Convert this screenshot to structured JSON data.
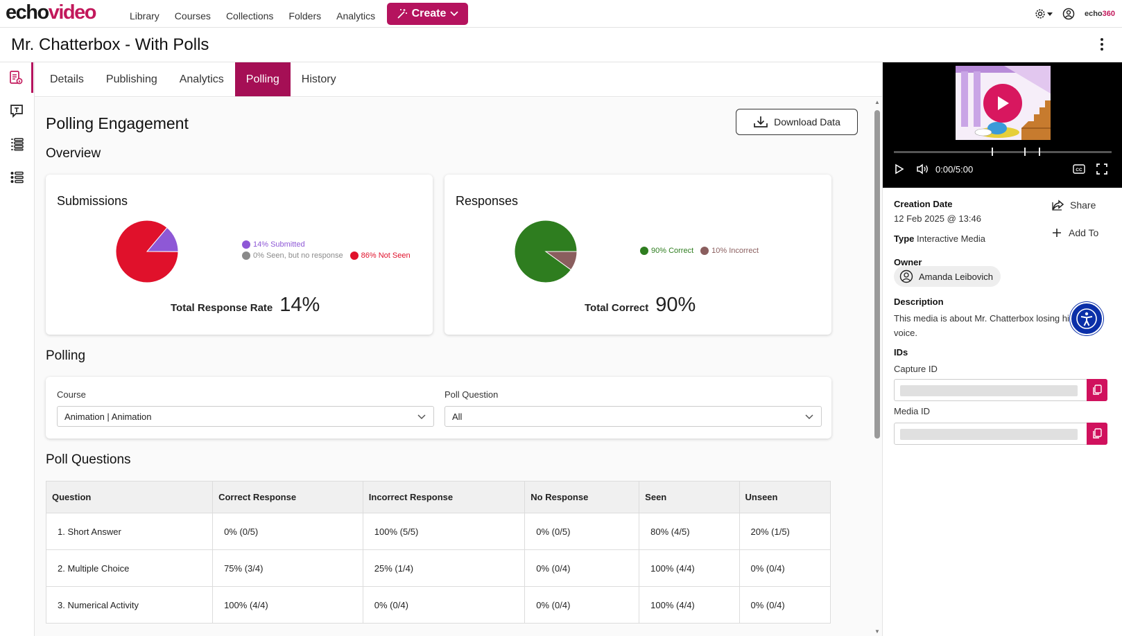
{
  "brand": {
    "logo_main": "echo",
    "logo_accent": "video",
    "small_main": "echo",
    "small_accent": "360"
  },
  "nav": {
    "items": [
      "Library",
      "Courses",
      "Collections",
      "Folders",
      "Analytics"
    ],
    "create_label": "Create"
  },
  "page": {
    "title": "Mr. Chatterbox - With Polls"
  },
  "tabs": [
    "Details",
    "Publishing",
    "Analytics",
    "Polling",
    "History"
  ],
  "active_tab": "Polling",
  "polling": {
    "heading": "Polling Engagement",
    "download_label": "Download Data",
    "overview_heading": "Overview",
    "submissions": {
      "title": "Submissions",
      "legend": [
        {
          "label": "14% Submitted",
          "color": "#8e58d6"
        },
        {
          "label": "0% Seen, but no response",
          "color": "#8a8a8a"
        },
        {
          "label": "86% Not Seen",
          "color": "#e0112b"
        }
      ],
      "stat_label": "Total Response Rate",
      "stat_value": "14%"
    },
    "responses": {
      "title": "Responses",
      "legend": [
        {
          "label": "90% Correct",
          "color": "#2e7d1f"
        },
        {
          "label": "10% Incorrect",
          "color": "#8a5e5e"
        }
      ],
      "stat_label": "Total Correct",
      "stat_value": "90%"
    },
    "polling_heading": "Polling",
    "course_label": "Course",
    "course_value": "Animation | Animation",
    "question_label": "Poll Question",
    "question_value": "All",
    "poll_questions_heading": "Poll Questions",
    "table": {
      "headers": [
        "Question",
        "Correct Response",
        "Incorrect Response",
        "No Response",
        "Seen",
        "Unseen"
      ],
      "rows": [
        [
          "1. Short Answer",
          "0% (0/5)",
          "100% (5/5)",
          "0% (0/5)",
          "80% (4/5)",
          "20% (1/5)"
        ],
        [
          "2. Multiple Choice",
          "75% (3/4)",
          "25% (1/4)",
          "0% (0/4)",
          "100% (4/4)",
          "0% (0/4)"
        ],
        [
          "3. Numerical Activity",
          "100% (4/4)",
          "0% (0/4)",
          "0% (0/4)",
          "100% (4/4)",
          "0% (0/4)"
        ]
      ]
    }
  },
  "chart_data": [
    {
      "type": "pie",
      "title": "Submissions",
      "categories": [
        "Submitted",
        "Seen, but no response",
        "Not Seen"
      ],
      "values": [
        14,
        0,
        86
      ],
      "colors": [
        "#8e58d6",
        "#8a8a8a",
        "#e0112b"
      ]
    },
    {
      "type": "pie",
      "title": "Responses",
      "categories": [
        "Correct",
        "Incorrect"
      ],
      "values": [
        90,
        10
      ],
      "colors": [
        "#2e7d1f",
        "#8a5e5e"
      ]
    }
  ],
  "player": {
    "time": "0:00/5:00",
    "progress_fraction": 0
  },
  "details": {
    "creation_label": "Creation Date",
    "creation_value": "12 Feb 2025 @ 13:46",
    "share_label": "Share",
    "type_label": "Type",
    "type_value": "Interactive Media",
    "add_to_label": "Add To",
    "owner_label": "Owner",
    "owner_name": "Amanda Leibovich",
    "description_label": "Description",
    "description_line1": "This media is about Mr. Chatterbox losing hi",
    "description_line2": "voice.",
    "ids_label": "IDs",
    "capture_id_label": "Capture ID",
    "media_id_label": "Media ID"
  }
}
